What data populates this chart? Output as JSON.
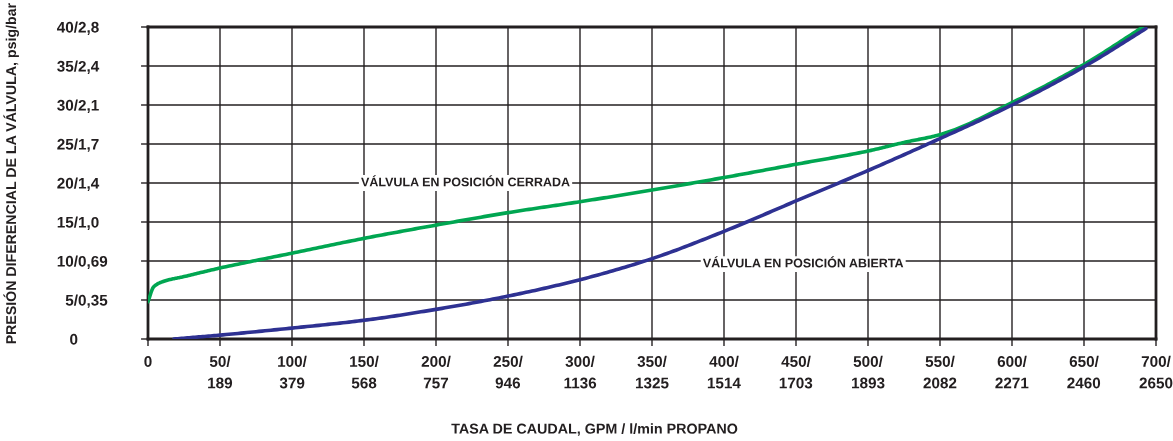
{
  "chart_data": {
    "type": "line",
    "xlabel": "TASA DE CAUDAL, GPM / l/min PROPANO",
    "ylabel": "PRESIÓN DIFERENCIAL DE LA VÁLVULA, psig/bar",
    "xlim": [
      0,
      700
    ],
    "ylim": [
      0,
      40
    ],
    "xticks": [
      0,
      {
        "value": 50,
        "label": "50/"
      },
      {
        "value": 100,
        "label": "100/"
      },
      {
        "value": 150,
        "label": "150/"
      },
      {
        "value": 200,
        "label": "200/"
      },
      {
        "value": 250,
        "label": "250/"
      },
      {
        "value": 300,
        "label": "300/"
      },
      {
        "value": 350,
        "label": "350/"
      },
      {
        "value": 400,
        "label": "400/"
      },
      {
        "value": 450,
        "label": "450/"
      },
      {
        "value": 500,
        "label": "500/"
      },
      {
        "value": 550,
        "label": "550/"
      },
      {
        "value": 600,
        "label": "600/"
      },
      {
        "value": 650,
        "label": "650/"
      },
      {
        "value": 700,
        "label": "700/"
      }
    ],
    "x2lim": [
      0,
      2650
    ],
    "x2ticks": [
      189,
      379,
      568,
      757,
      946,
      1136,
      1325,
      1514,
      1703,
      1893,
      2082,
      2271,
      2460,
      2650
    ],
    "yticks": [
      0,
      {
        "value": 5,
        "label": "5/"
      },
      {
        "value": 10,
        "label": "10/"
      },
      {
        "value": 15,
        "label": "15/"
      },
      {
        "value": 20,
        "label": "20/"
      },
      {
        "value": 25,
        "label": "25/"
      },
      {
        "value": 30,
        "label": "30/"
      },
      {
        "value": 35,
        "label": "35/"
      },
      {
        "value": 40,
        "label": "40/"
      }
    ],
    "y2lim": [
      0,
      2.758
    ],
    "y2ticks": [
      {
        "value": 0.345,
        "label": "0,35"
      },
      {
        "value": 0.689,
        "label": "0,69"
      },
      {
        "value": 1.034,
        "label": "1,0"
      },
      {
        "value": 1.379,
        "label": "1,4"
      },
      {
        "value": 1.724,
        "label": "1,7"
      },
      {
        "value": 2.068,
        "label": "2,1"
      },
      {
        "value": 2.413,
        "label": "2,4"
      },
      {
        "value": 2.758,
        "label": "2,8"
      }
    ],
    "grid": true,
    "line_style": "solid",
    "series": [
      {
        "name": "VÁLVULA EN POSICIÓN CERRADA",
        "color": "#00a651",
        "x": [
          0,
          4,
          11,
          25,
          50,
          100,
          150,
          200,
          250,
          300,
          350,
          400,
          450,
          500,
          525,
          550,
          600,
          650,
          691
        ],
        "values": [
          4.8,
          6.7,
          7.4,
          8.0,
          9.1,
          11.0,
          12.9,
          14.6,
          16.2,
          17.6,
          19.1,
          20.7,
          22.4,
          24.1,
          25.2,
          26.2,
          30.3,
          35.2,
          40.0
        ]
      },
      {
        "name": "VÁLVULA EN POSICIÓN ABIERTA",
        "color": "#2e3192",
        "x": [
          18,
          50,
          100,
          150,
          200,
          250,
          300,
          350,
          400,
          450,
          500,
          550,
          600,
          650,
          693
        ],
        "values": [
          0.0,
          0.5,
          1.4,
          2.4,
          3.8,
          5.5,
          7.6,
          10.3,
          13.8,
          17.7,
          21.6,
          25.7,
          30.0,
          34.9,
          39.8
        ]
      }
    ]
  }
}
